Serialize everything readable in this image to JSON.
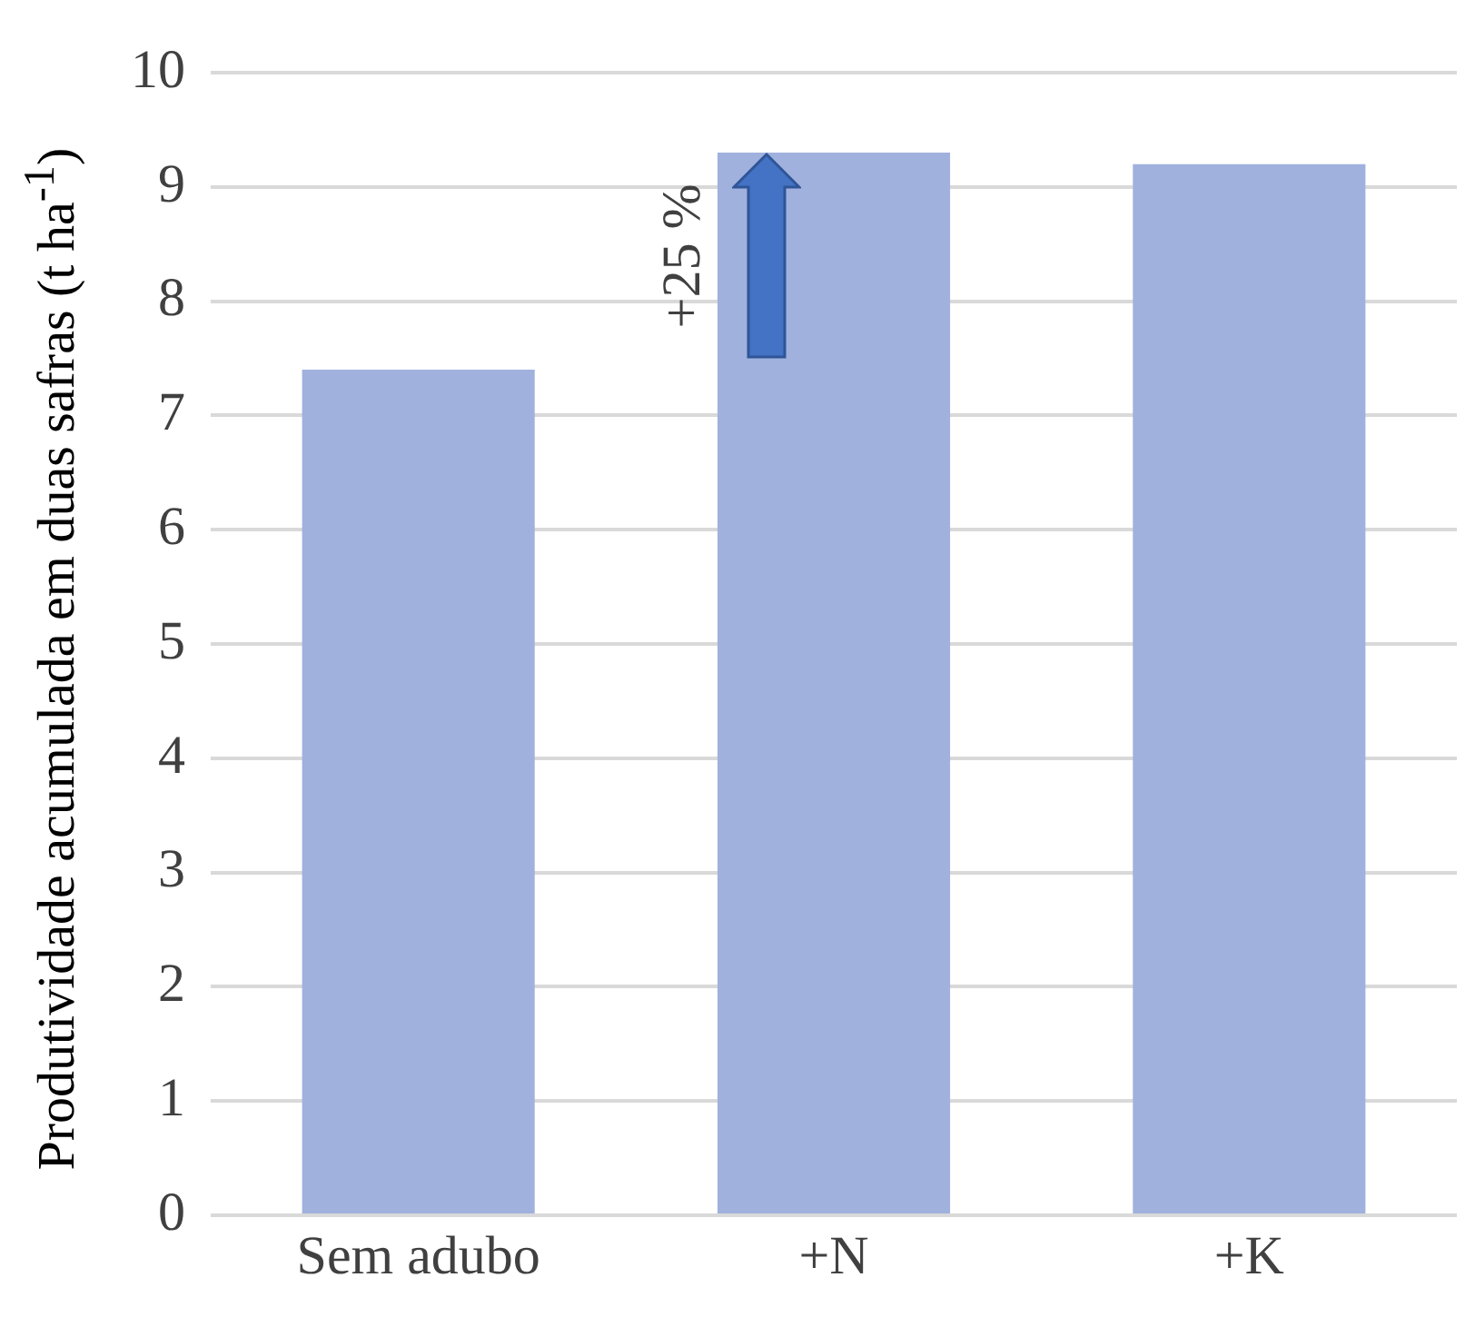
{
  "chart_data": {
    "type": "bar",
    "ylabel": "Produtividade acumulada em duas safras (t ha$^{-1}$)",
    "categories": [
      "Sem adubo",
      "+N",
      "+K"
    ],
    "values": [
      7.4,
      9.3,
      9.2
    ],
    "color": "#a0b1dd",
    "ylim": [
      0,
      10
    ],
    "yticks": [
      0,
      1,
      2,
      3,
      4,
      5,
      6,
      7,
      8,
      9,
      10
    ],
    "grid": "y",
    "legend": false,
    "annotations": [
      "+25 %"
    ]
  }
}
